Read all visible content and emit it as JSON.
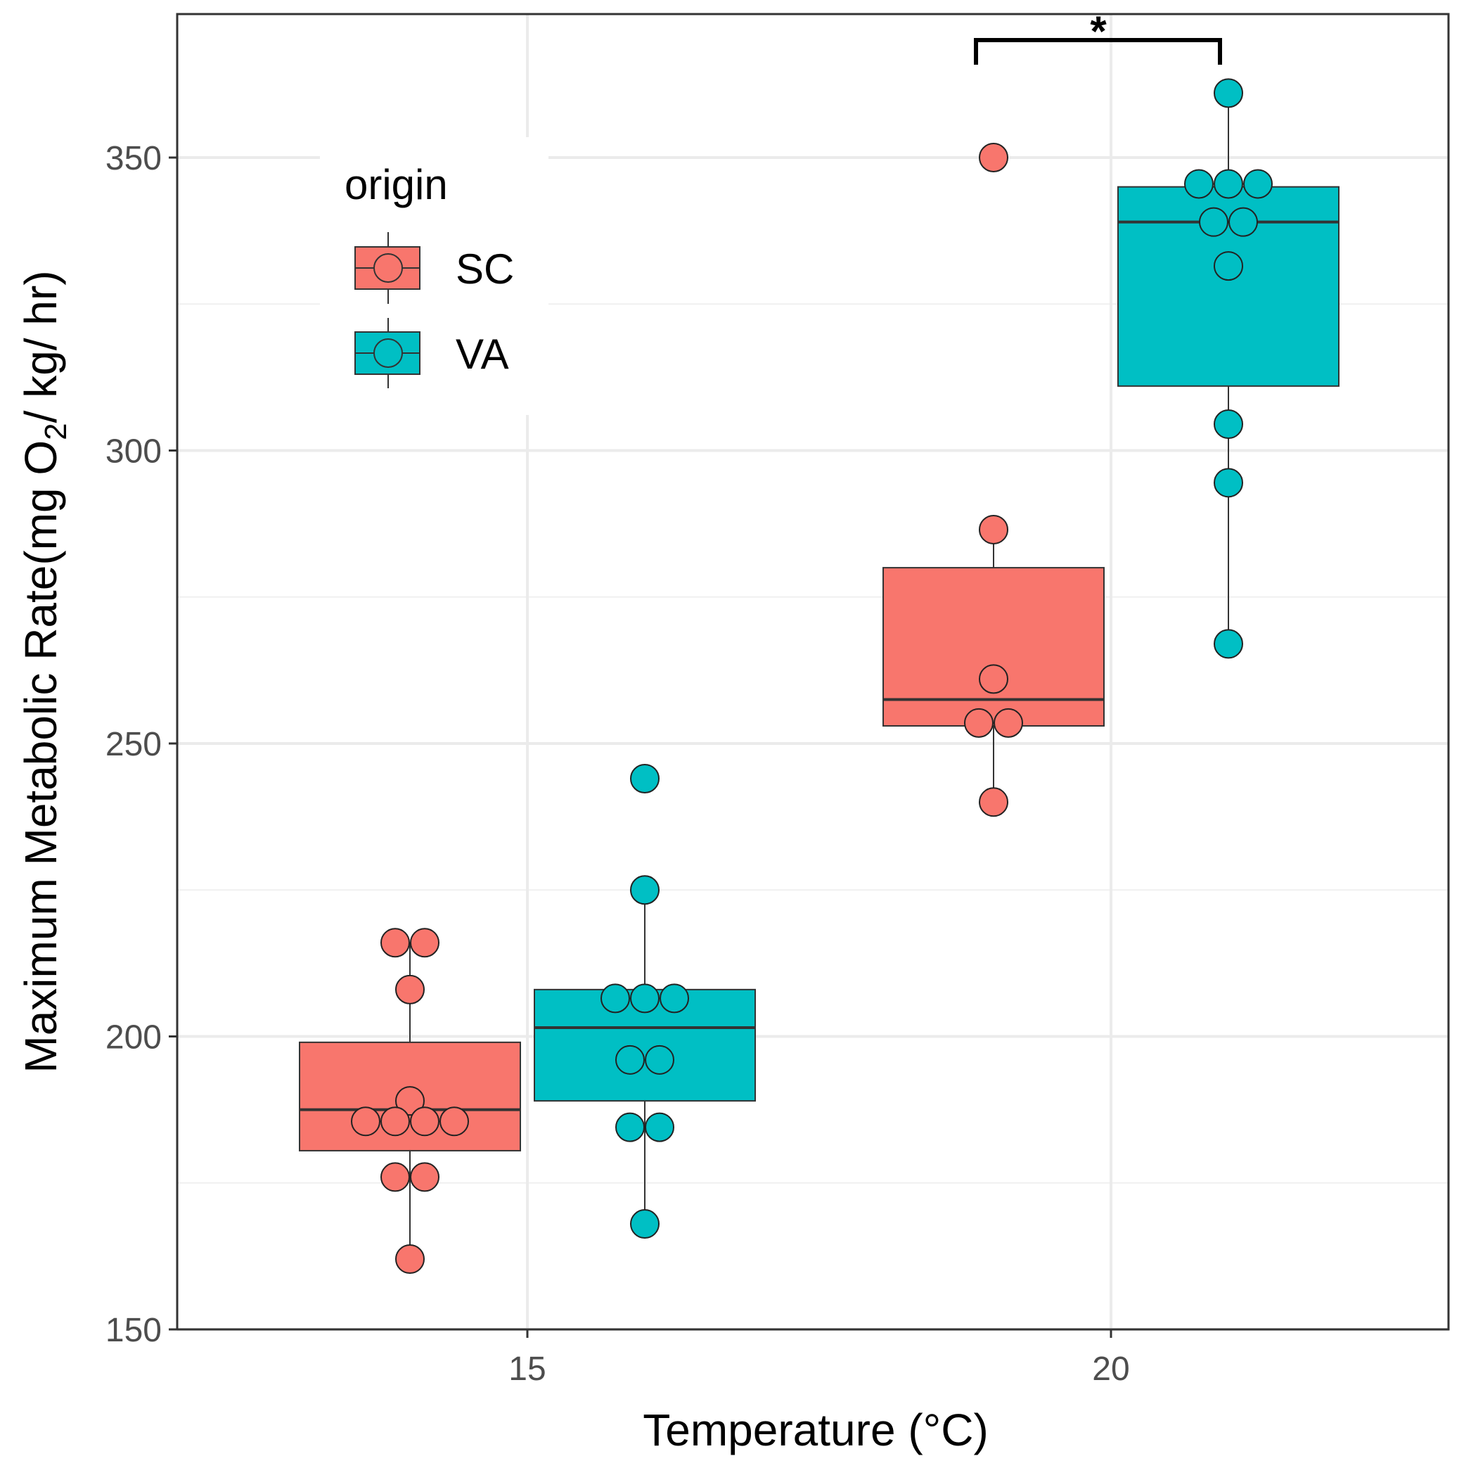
{
  "chart_data": {
    "type": "boxplot",
    "title": "",
    "xlabel": "Temperature (°C)",
    "ylabel_parts": {
      "prefix": "Maximum Metabolic Rate",
      "open": "(",
      "mg": "mg O",
      "sub": "2",
      "rest": "/ kg/ hr)"
    },
    "x_categories": [
      "15",
      "20"
    ],
    "ylim": [
      150,
      370
    ],
    "y_ticks": [
      150,
      200,
      250,
      300,
      350
    ],
    "grid": true,
    "legend": {
      "title": "origin",
      "position": "top-left",
      "entries": [
        {
          "label": "SC",
          "color": "#F8766D"
        },
        {
          "label": "VA",
          "color": "#00BFC4"
        }
      ]
    },
    "groups": [
      {
        "origin": "SC",
        "temperature": "15",
        "color": "#F8766D",
        "q1": 180.5,
        "median": 187.5,
        "q3": 199,
        "whisker_low": 162,
        "whisker_high": 216,
        "points": [
          162,
          176,
          176,
          185.5,
          185.5,
          185.5,
          185.5,
          189,
          208,
          216,
          216
        ]
      },
      {
        "origin": "VA",
        "temperature": "15",
        "color": "#00BFC4",
        "q1": 189,
        "median": 201.5,
        "q3": 208,
        "whisker_low": 168,
        "whisker_high": 225,
        "points": [
          168,
          184.5,
          184.5,
          196,
          196,
          206.5,
          206.5,
          206.5,
          225,
          244
        ]
      },
      {
        "origin": "SC",
        "temperature": "20",
        "color": "#F8766D",
        "q1": 253,
        "median": 257.5,
        "q3": 280,
        "whisker_low": 240,
        "whisker_high": 286.5,
        "points": [
          240,
          253.5,
          253.5,
          261,
          286.5,
          350
        ]
      },
      {
        "origin": "VA",
        "temperature": "20",
        "color": "#00BFC4",
        "q1": 311,
        "median": 339,
        "q3": 345,
        "whisker_low": 267,
        "whisker_high": 361,
        "points": [
          267,
          294.5,
          304.5,
          331.5,
          339,
          339,
          345.5,
          345.5,
          345.5,
          361
        ]
      }
    ],
    "annotations": [
      {
        "text": "*",
        "between": [
          "SC 20",
          "VA 20"
        ]
      }
    ]
  }
}
